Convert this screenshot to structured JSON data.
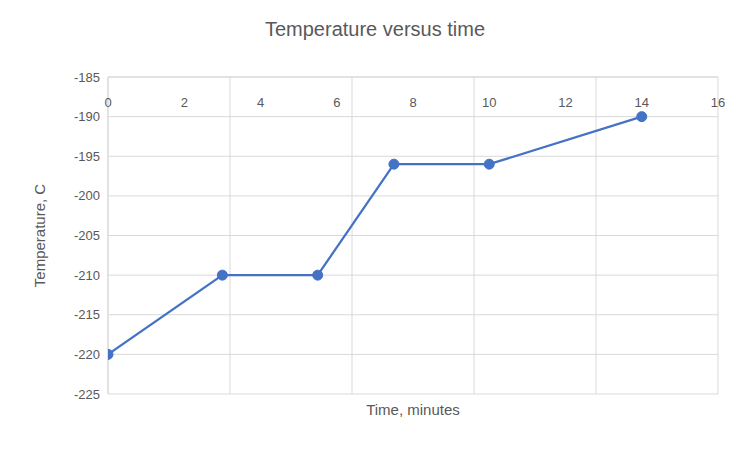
{
  "chart_data": {
    "type": "line",
    "title": "Temperature versus time",
    "x_label": "Time, minutes",
    "y_label": "Temperature, C",
    "x": [
      0,
      3,
      5.5,
      7.5,
      10,
      14
    ],
    "values": [
      -220,
      -210,
      -210,
      -196,
      -196,
      -190
    ],
    "color": "#4472c4",
    "marker": "circle",
    "xlim": [
      0,
      16
    ],
    "xticks": [
      0,
      2,
      4,
      6,
      8,
      10,
      12,
      14,
      16
    ],
    "ylim": [
      -225,
      -185
    ],
    "yticks": [
      -225,
      -220,
      -215,
      -210,
      -205,
      -200,
      -195,
      -190,
      -185
    ],
    "grid": true
  }
}
